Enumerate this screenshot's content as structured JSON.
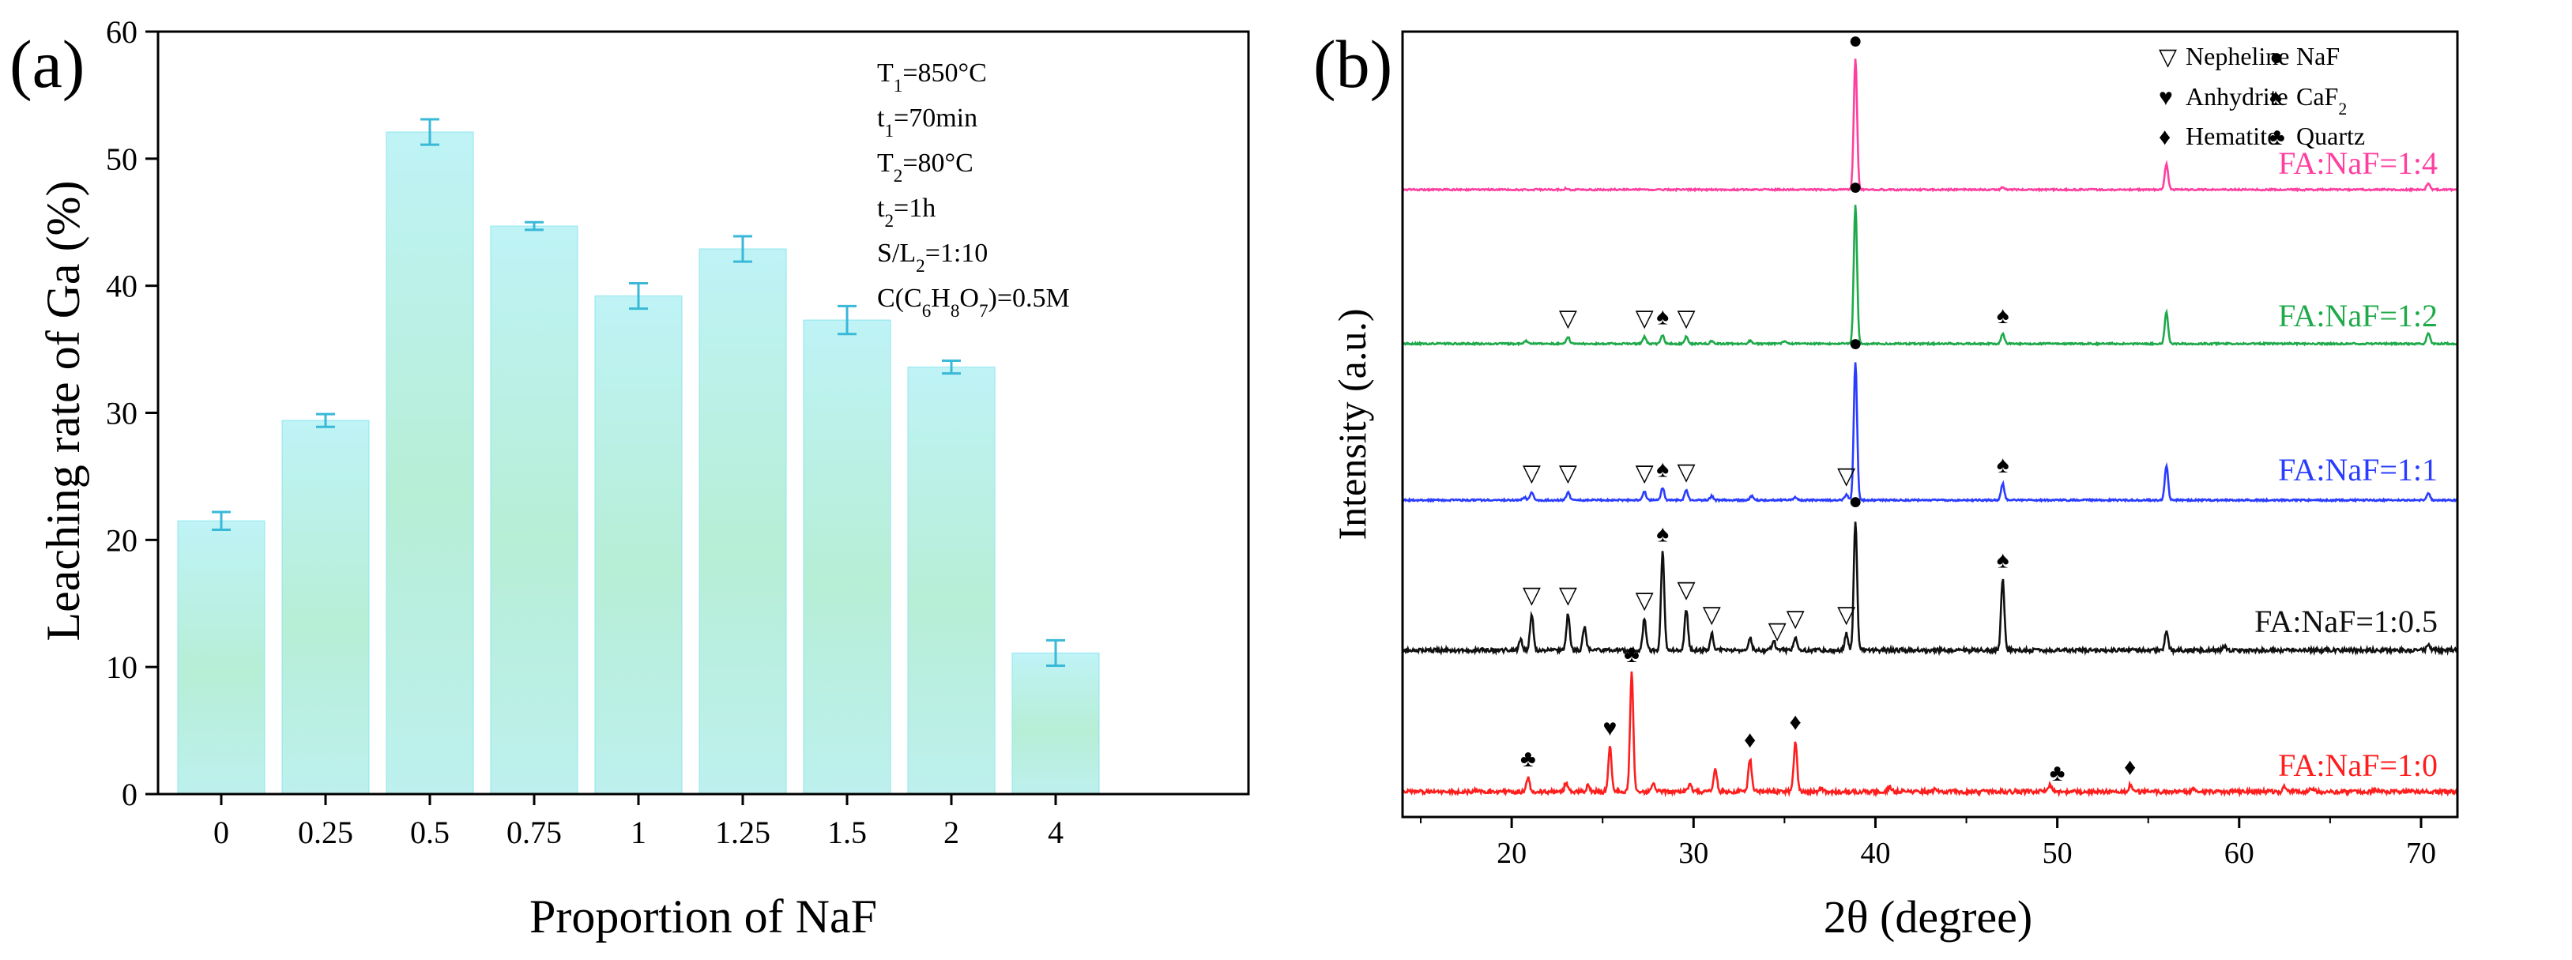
{
  "figure": {
    "colors": {
      "axis": "#000000",
      "bar_top": "#bff3f6",
      "bar_mid": "#b5ecd4",
      "bar_edge": "#8fe6ee",
      "error_bar": "#39b8d8",
      "xrd_pink": "#ff3fa0",
      "xrd_green": "#1faa4a",
      "xrd_blue": "#2a3cff",
      "xrd_black": "#111111",
      "xrd_red": "#ff1e1e"
    }
  },
  "chart_data": [
    {
      "panel_label": "(a)",
      "type": "bar",
      "xlabel": "Proportion of NaF",
      "ylabel": "Leaching rate of Ga (%)",
      "ylim": [
        0,
        60
      ],
      "yticks": [
        "0",
        "10",
        "20",
        "30",
        "40",
        "50",
        "60"
      ],
      "categories": [
        "0",
        "0.25",
        "0.5",
        "0.75",
        "1",
        "1.25",
        "1.5",
        "2",
        "4"
      ],
      "values": [
        21.5,
        29.4,
        52.1,
        44.7,
        39.2,
        42.9,
        37.3,
        33.6,
        11.1
      ],
      "errors": [
        0.7,
        0.5,
        1.0,
        0.3,
        1.0,
        1.0,
        1.1,
        0.5,
        1.0
      ],
      "conditions": [
        "T1=850°C",
        "t1=70min",
        "T2=80°C",
        "t2=1h",
        "S/L2=1:10",
        "C(C6H8O7)=0.5M"
      ]
    },
    {
      "panel_label": "(b)",
      "type": "line",
      "xlabel": "2θ (degree)",
      "ylabel": "Intensity (a.u.)",
      "xlim": [
        14,
        72
      ],
      "xticks": [
        "20",
        "30",
        "40",
        "50",
        "60",
        "70"
      ],
      "legend": [
        {
          "symbol": "▽",
          "label": "Nepheline"
        },
        {
          "symbol": "●",
          "label": "NaF"
        },
        {
          "symbol": "♥",
          "label": "Anhydrite"
        },
        {
          "symbol": "♠",
          "label": "CaF2"
        },
        {
          "symbol": "♦",
          "label": "Hematite"
        },
        {
          "symbol": "♣",
          "label": "Quartz"
        }
      ],
      "series": [
        {
          "name": "FA:NaF=1:4",
          "peaks": [
            [
              38.9,
              1.0
            ],
            [
              56.0,
              0.2
            ],
            [
              47.0,
              0.02
            ],
            [
              70.4,
              0.05
            ],
            [
              23.0,
              0.01
            ]
          ],
          "markers": [
            {
              "x": 38.9,
              "symbol": "●"
            }
          ]
        },
        {
          "name": "FA:NaF=1:2",
          "peaks": [
            [
              38.9,
              1.0
            ],
            [
              56.0,
              0.23
            ],
            [
              47.0,
              0.07
            ],
            [
              70.4,
              0.08
            ],
            [
              23.1,
              0.05
            ],
            [
              27.3,
              0.05
            ],
            [
              28.3,
              0.06
            ],
            [
              29.6,
              0.05
            ],
            [
              20.8,
              0.02
            ],
            [
              31.0,
              0.02
            ],
            [
              33.1,
              0.02
            ],
            [
              35.0,
              0.02
            ]
          ],
          "markers": [
            {
              "x": 23.1,
              "symbol": "▽"
            },
            {
              "x": 27.3,
              "symbol": "▽"
            },
            {
              "x": 28.3,
              "symbol": "♠"
            },
            {
              "x": 29.6,
              "symbol": "▽"
            },
            {
              "x": 38.9,
              "symbol": "●"
            },
            {
              "x": 47.0,
              "symbol": "♠"
            }
          ]
        },
        {
          "name": "FA:NaF=1:1",
          "peaks": [
            [
              38.9,
              1.0
            ],
            [
              56.0,
              0.25
            ],
            [
              47.0,
              0.12
            ],
            [
              70.4,
              0.05
            ],
            [
              21.1,
              0.06
            ],
            [
              23.1,
              0.06
            ],
            [
              27.3,
              0.06
            ],
            [
              28.3,
              0.09
            ],
            [
              29.6,
              0.07
            ],
            [
              31.0,
              0.03
            ],
            [
              33.2,
              0.03
            ],
            [
              38.4,
              0.04
            ],
            [
              20.7,
              0.02
            ],
            [
              35.6,
              0.02
            ]
          ],
          "markers": [
            {
              "x": 21.1,
              "symbol": "▽"
            },
            {
              "x": 23.1,
              "symbol": "▽"
            },
            {
              "x": 27.3,
              "symbol": "▽"
            },
            {
              "x": 28.3,
              "symbol": "♠"
            },
            {
              "x": 29.6,
              "symbol": "▽"
            },
            {
              "x": 38.4,
              "symbol": "▽"
            },
            {
              "x": 38.9,
              "symbol": "●"
            },
            {
              "x": 47.0,
              "symbol": "♠"
            }
          ]
        },
        {
          "name": "FA:NaF=1:0.5",
          "peaks": [
            [
              38.9,
              1.0
            ],
            [
              28.3,
              0.75
            ],
            [
              47.0,
              0.55
            ],
            [
              56.0,
              0.15
            ],
            [
              21.1,
              0.28
            ],
            [
              23.1,
              0.28
            ],
            [
              24.0,
              0.18
            ],
            [
              27.3,
              0.24
            ],
            [
              29.6,
              0.32
            ],
            [
              31.0,
              0.13
            ],
            [
              33.1,
              0.1
            ],
            [
              34.4,
              0.08
            ],
            [
              35.6,
              0.1
            ],
            [
              38.4,
              0.13
            ],
            [
              20.5,
              0.08
            ],
            [
              70.4,
              0.04
            ],
            [
              59.2,
              0.03
            ]
          ],
          "markers": [
            {
              "x": 21.1,
              "symbol": "▽"
            },
            {
              "x": 23.1,
              "symbol": "▽"
            },
            {
              "x": 27.3,
              "symbol": "▽"
            },
            {
              "x": 28.3,
              "symbol": "♠"
            },
            {
              "x": 29.6,
              "symbol": "▽"
            },
            {
              "x": 31.0,
              "symbol": "▽"
            },
            {
              "x": 34.6,
              "symbol": "▽"
            },
            {
              "x": 35.6,
              "symbol": "▽"
            },
            {
              "x": 38.4,
              "symbol": "▽"
            },
            {
              "x": 38.9,
              "symbol": "●"
            },
            {
              "x": 47.0,
              "symbol": "♠"
            }
          ]
        },
        {
          "name": "FA:NaF=1:0",
          "peaks": [
            [
              26.6,
              1.0
            ],
            [
              25.4,
              0.38
            ],
            [
              35.6,
              0.43
            ],
            [
              33.1,
              0.28
            ],
            [
              31.2,
              0.2
            ],
            [
              20.9,
              0.12
            ],
            [
              23.0,
              0.08
            ],
            [
              27.8,
              0.06
            ],
            [
              29.8,
              0.07
            ],
            [
              49.6,
              0.06
            ],
            [
              54.0,
              0.05
            ],
            [
              40.8,
              0.04
            ],
            [
              62.5,
              0.04
            ],
            [
              24.2,
              0.05
            ],
            [
              18.0,
              0.02
            ],
            [
              37.0,
              0.03
            ],
            [
              43.3,
              0.03
            ],
            [
              57.5,
              0.03
            ],
            [
              64.0,
              0.03
            ],
            [
              67.5,
              0.02
            ]
          ],
          "markers": [
            {
              "x": 20.9,
              "symbol": "♣"
            },
            {
              "x": 25.4,
              "symbol": "♥"
            },
            {
              "x": 26.6,
              "symbol": "♣"
            },
            {
              "x": 33.1,
              "symbol": "♦"
            },
            {
              "x": 35.6,
              "symbol": "♦"
            },
            {
              "x": 50.0,
              "symbol": "♣"
            },
            {
              "x": 54.0,
              "symbol": "♦"
            }
          ]
        }
      ]
    }
  ]
}
